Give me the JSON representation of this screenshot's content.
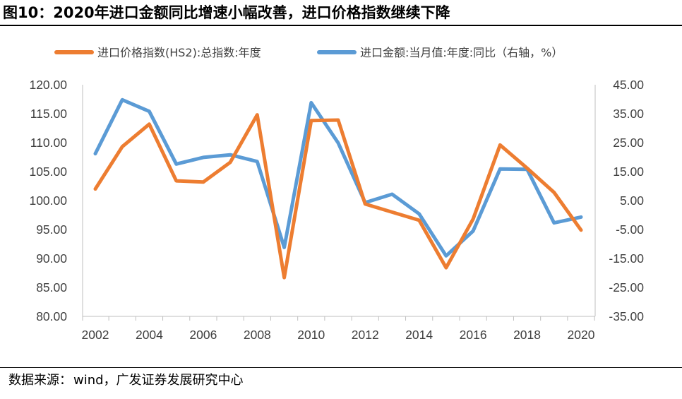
{
  "title": "图10：2020年进口金额同比增速小幅改善，进口价格指数继续下降",
  "source": {
    "label": "数据来源：",
    "text": "wind，广发证券发展研究中心"
  },
  "chart_data": {
    "type": "line",
    "x": [
      2002,
      2003,
      2004,
      2005,
      2006,
      2007,
      2008,
      2009,
      2010,
      2011,
      2012,
      2013,
      2014,
      2015,
      2016,
      2017,
      2018,
      2019,
      2020
    ],
    "xticks": [
      "2002",
      "2004",
      "2006",
      "2008",
      "2010",
      "2012",
      "2014",
      "2016",
      "2018",
      "2020"
    ],
    "left_axis": {
      "ylim": [
        80,
        120
      ],
      "ticks": [
        "120.00",
        "115.00",
        "110.00",
        "105.00",
        "100.00",
        "95.00",
        "90.00",
        "85.00",
        "80.00"
      ]
    },
    "right_axis": {
      "ylim": [
        -35,
        45
      ],
      "ticks": [
        "45.00",
        "35.00",
        "25.00",
        "15.00",
        "5.00",
        "-5.00",
        "-15.00",
        "-25.00",
        "-35.00"
      ]
    },
    "series": [
      {
        "name": "进口价格指数(HS2):总指数:年度",
        "axis": "left",
        "color": "#ED7D31",
        "values": [
          102.0,
          109.3,
          113.2,
          103.4,
          103.2,
          106.6,
          114.8,
          86.7,
          113.8,
          113.9,
          99.4,
          98.0,
          96.6,
          88.4,
          96.8,
          109.6,
          105.6,
          101.4,
          94.9
        ]
      },
      {
        "name": "进口金额:当月值:年度:同比（右轴，%）",
        "axis": "right",
        "color": "#5B9BD5",
        "values": [
          21.2,
          39.8,
          35.8,
          17.6,
          19.9,
          20.8,
          18.5,
          -11.2,
          38.8,
          24.9,
          4.3,
          7.2,
          0.4,
          -14.1,
          -5.5,
          15.9,
          15.8,
          -2.7,
          -0.7
        ]
      }
    ]
  }
}
